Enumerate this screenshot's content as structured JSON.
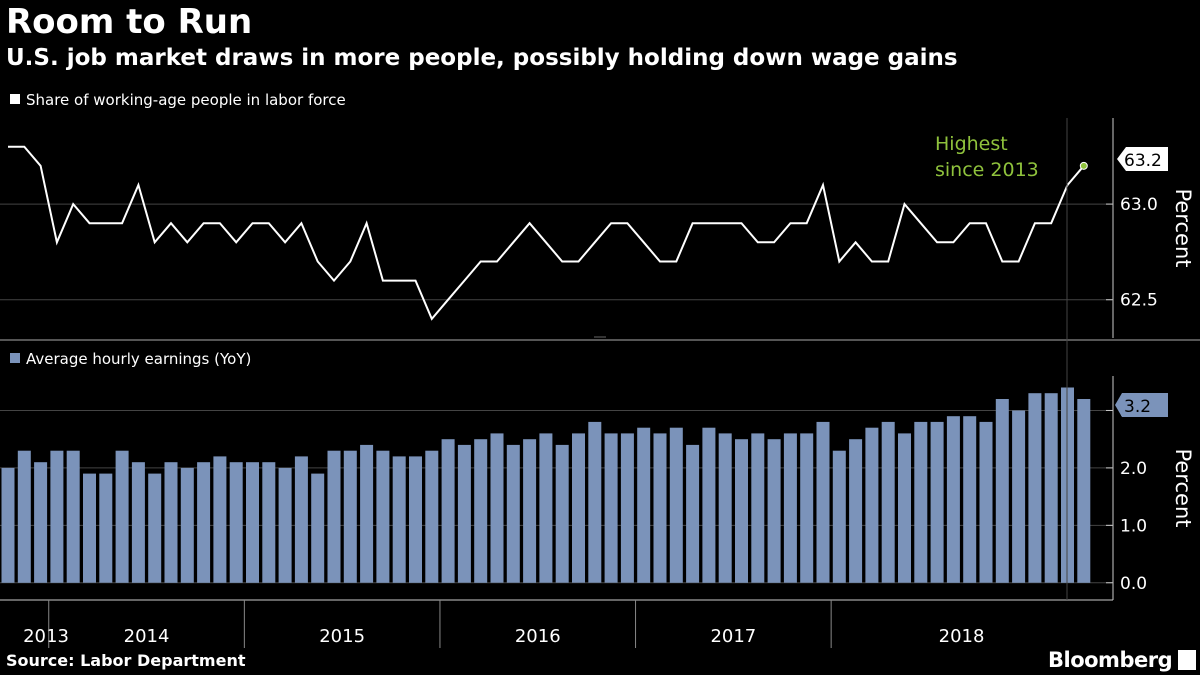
{
  "title": "Room to Run",
  "subtitle": "U.S. job market draws in more people, possibly holding down wage gains",
  "source": "Source: Labor Department",
  "logo": "Bloomberg",
  "colors": {
    "background": "#000000",
    "line": "#ffffff",
    "bars": "#7b93ba",
    "annotation": "#8fc23c",
    "grid": "#444444"
  },
  "chart_data": [
    {
      "type": "line",
      "legend": "Share of working-age people in labor force",
      "ylabel": "Percent",
      "ylim": [
        62.3,
        63.45
      ],
      "yticks": [
        "62.5",
        "63.0"
      ],
      "yticks_values": [
        62.5,
        63.0
      ],
      "last_value_label": "63.2",
      "annotation": [
        "Highest",
        "since 2013"
      ],
      "start": "2013-10",
      "values": [
        63.3,
        63.3,
        63.2,
        62.8,
        63.0,
        62.9,
        62.9,
        62.9,
        63.1,
        62.8,
        62.9,
        62.8,
        62.9,
        62.9,
        62.8,
        62.9,
        62.9,
        62.8,
        62.9,
        62.7,
        62.6,
        62.7,
        62.9,
        62.6,
        62.6,
        62.6,
        62.4,
        62.5,
        62.6,
        62.7,
        62.7,
        62.8,
        62.9,
        62.8,
        62.7,
        62.7,
        62.8,
        62.9,
        62.9,
        62.8,
        62.7,
        62.7,
        62.9,
        62.9,
        62.9,
        62.9,
        62.8,
        62.8,
        62.9,
        62.9,
        63.1,
        62.7,
        62.8,
        62.7,
        62.7,
        63.0,
        62.9,
        62.8,
        62.8,
        62.9,
        62.9,
        62.7,
        62.7,
        62.9,
        62.9,
        63.1,
        63.2
      ]
    },
    {
      "type": "bar",
      "legend": "Average hourly earnings (YoY)",
      "ylabel": "Percent",
      "ylim": [
        -0.3,
        3.6
      ],
      "yticks": [
        "0.0",
        "1.0",
        "2.0",
        "3.0"
      ],
      "yticks_values": [
        0,
        1,
        2,
        3
      ],
      "last_value_label": "3.2",
      "start": "2013-10",
      "values": [
        2.0,
        2.3,
        2.1,
        2.3,
        2.3,
        1.9,
        1.9,
        2.3,
        2.1,
        1.9,
        2.1,
        2.0,
        2.1,
        2.2,
        2.1,
        2.1,
        2.1,
        2.0,
        2.2,
        1.9,
        2.3,
        2.3,
        2.4,
        2.3,
        2.2,
        2.2,
        2.3,
        2.5,
        2.4,
        2.5,
        2.6,
        2.4,
        2.5,
        2.6,
        2.4,
        2.6,
        2.8,
        2.6,
        2.6,
        2.7,
        2.6,
        2.7,
        2.4,
        2.7,
        2.6,
        2.5,
        2.6,
        2.5,
        2.6,
        2.6,
        2.8,
        2.3,
        2.5,
        2.7,
        2.8,
        2.6,
        2.8,
        2.8,
        2.9,
        2.9,
        2.8,
        3.2,
        3.0,
        3.3,
        3.3,
        3.4,
        3.2
      ]
    }
  ],
  "years": [
    "2013",
    "2014",
    "2015",
    "2016",
    "2017",
    "2018"
  ]
}
